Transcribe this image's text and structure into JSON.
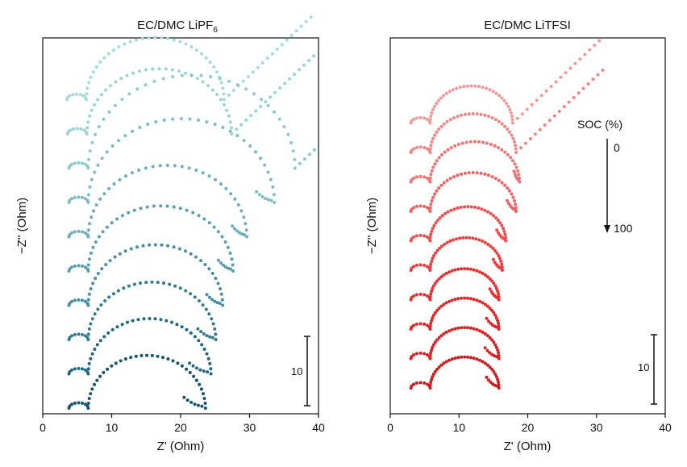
{
  "chart_data": [
    {
      "type": "scatter",
      "panel": "left",
      "title_main": "EC/DMC LiPF",
      "title_sub": "6",
      "xlabel": "Z' (Ohm)",
      "ylabel": "−Z'' (Ohm)",
      "xlim": [
        0,
        40
      ],
      "x_ticks": [
        "0",
        "10",
        "20",
        "30",
        "40"
      ],
      "y_ticks": [],
      "scale_bar": {
        "label": "10",
        "length": 10
      },
      "grid": false,
      "legend": "none",
      "series": [
        {
          "color": "#a6dcd8",
          "rs": 3.5,
          "rct": 20.0,
          "tail": true,
          "offset": 10.0
        },
        {
          "color": "#99d5d1",
          "rs": 3.6,
          "rct": 21.0,
          "tail": true,
          "offset": 9.0
        },
        {
          "color": "#8bcbcc",
          "rs": 3.8,
          "rct": 30.0,
          "tail": true,
          "offset": 8.0
        },
        {
          "color": "#7cbcc3",
          "rs": 3.8,
          "rct": 27.0,
          "tail": false,
          "end_x": 31.0,
          "offset": 7.0
        },
        {
          "color": "#6caebb",
          "rs": 3.8,
          "rct": 23.0,
          "tail": false,
          "end_x": 27.5,
          "offset": 6.0
        },
        {
          "color": "#5a9fb0",
          "rs": 3.8,
          "rct": 21.0,
          "tail": false,
          "end_x": 25.5,
          "offset": 5.0
        },
        {
          "color": "#478ea4",
          "rs": 3.8,
          "rct": 19.5,
          "tail": false,
          "end_x": 23.8,
          "offset": 4.0
        },
        {
          "color": "#327b92",
          "rs": 3.8,
          "rct": 18.5,
          "tail": false,
          "end_x": 22.5,
          "offset": 3.0
        },
        {
          "color": "#216780",
          "rs": 3.8,
          "rct": 17.8,
          "tail": false,
          "end_x": 21.3,
          "offset": 2.0
        },
        {
          "color": "#15546e",
          "rs": 3.8,
          "rct": 17.0,
          "tail": false,
          "end_x": 20.5,
          "offset": 1.0
        }
      ]
    },
    {
      "type": "scatter",
      "panel": "right",
      "title_main": "EC/DMC LiTFSI",
      "xlabel": "Z' (Ohm)",
      "ylabel": "−Z'' (Ohm)",
      "xlim": [
        0,
        40
      ],
      "x_ticks": [
        "0",
        "10",
        "20",
        "30",
        "40"
      ],
      "y_ticks": [],
      "scale_bar": {
        "label": "10",
        "length": 10
      },
      "annotation": {
        "title": "SOC (%)",
        "start": "0",
        "end": "100"
      },
      "grid": false,
      "legend": "none",
      "series": [
        {
          "color": "#f29a9a",
          "rs": 3.0,
          "rct": 12.0,
          "tail": true,
          "offset": 10.0
        },
        {
          "color": "#f08686",
          "rs": 3.0,
          "rct": 12.5,
          "tail": true,
          "offset": 9.0
        },
        {
          "color": "#ee7575",
          "rs": 3.0,
          "rct": 13.0,
          "tail": false,
          "end_x": 18.0,
          "offset": 8.0
        },
        {
          "color": "#ec6363",
          "rs": 3.0,
          "rct": 12.5,
          "tail": false,
          "end_x": 17.0,
          "offset": 7.0
        },
        {
          "color": "#ea5050",
          "rs": 3.0,
          "rct": 11.0,
          "tail": false,
          "end_x": 15.5,
          "offset": 6.0
        },
        {
          "color": "#e84040",
          "rs": 3.0,
          "rct": 10.5,
          "tail": false,
          "end_x": 15.0,
          "offset": 5.0
        },
        {
          "color": "#e43232",
          "rs": 3.0,
          "rct": 10.0,
          "tail": false,
          "end_x": 14.5,
          "offset": 4.0
        },
        {
          "color": "#dc2a2a",
          "rs": 3.0,
          "rct": 10.0,
          "tail": false,
          "end_x": 14.0,
          "offset": 3.0
        },
        {
          "color": "#d42424",
          "rs": 3.0,
          "rct": 10.0,
          "tail": false,
          "end_x": 13.8,
          "offset": 2.0
        },
        {
          "color": "#c91f1f",
          "rs": 3.0,
          "rct": 10.0,
          "tail": false,
          "end_x": 14.0,
          "offset": 1.0
        }
      ]
    }
  ]
}
